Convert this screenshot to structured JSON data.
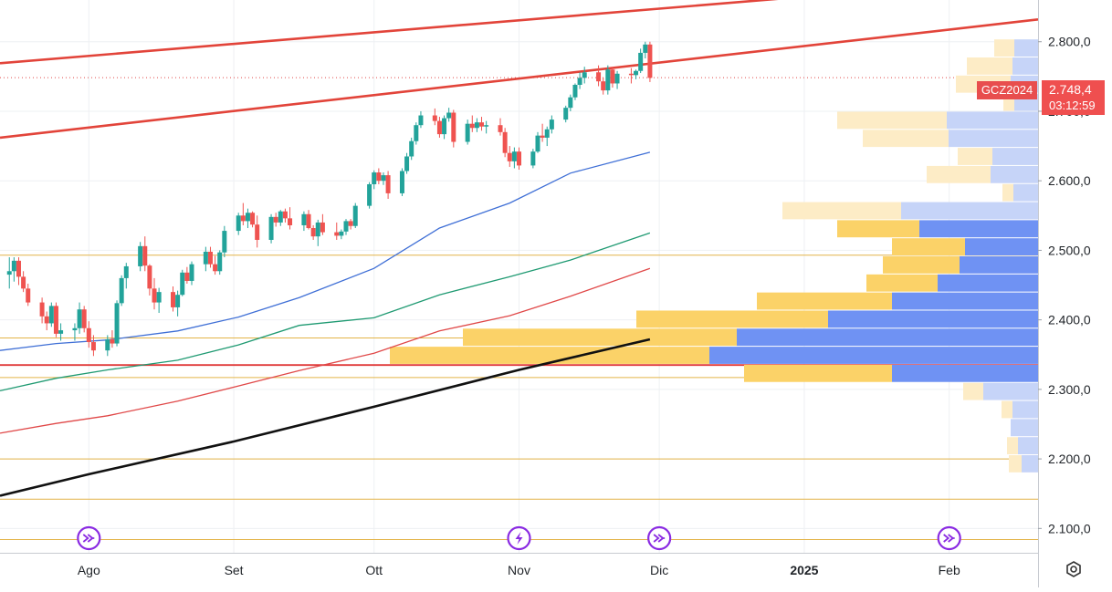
{
  "chart_data": {
    "type": "candlestick",
    "symbol": "GCZ2024",
    "last_price": "2.748,4",
    "countdown": "03:12:59",
    "y_ticks": [
      {
        "value": 2800,
        "label": "2.800,0"
      },
      {
        "value": 2700,
        "label": "2.700,0"
      },
      {
        "value": 2600,
        "label": "2.600,0"
      },
      {
        "value": 2500,
        "label": "2.500,0"
      },
      {
        "value": 2400,
        "label": "2.400,0"
      },
      {
        "value": 2300,
        "label": "2.300,0"
      },
      {
        "value": 2200,
        "label": "2.200,0"
      },
      {
        "value": 2100,
        "label": "2.100,0"
      }
    ],
    "x_ticks": [
      {
        "date": "2024-08-01",
        "label": "Ago",
        "bold": false
      },
      {
        "date": "2024-09-01",
        "label": "Set",
        "bold": false
      },
      {
        "date": "2024-10-01",
        "label": "Ott",
        "bold": false
      },
      {
        "date": "2024-11-01",
        "label": "Nov",
        "bold": false
      },
      {
        "date": "2024-12-01",
        "label": "Dic",
        "bold": false
      },
      {
        "date": "2025-01-01",
        "label": "2025",
        "bold": true
      },
      {
        "date": "2025-02-01",
        "label": "Feb",
        "bold": false
      }
    ],
    "ylim": [
      2065,
      2860
    ],
    "xlim": [
      "2024-07-13",
      "2025-02-20"
    ],
    "grid": true,
    "candles": [
      [
        "2024-07-15",
        2465,
        2490,
        2445,
        2470
      ],
      [
        "2024-07-16",
        2470,
        2490,
        2455,
        2485
      ],
      [
        "2024-07-17",
        2485,
        2490,
        2450,
        2462
      ],
      [
        "2024-07-18",
        2462,
        2470,
        2440,
        2445
      ],
      [
        "2024-07-19",
        2445,
        2452,
        2420,
        2425
      ],
      [
        "2024-07-22",
        2425,
        2432,
        2395,
        2405
      ],
      [
        "2024-07-23",
        2405,
        2412,
        2385,
        2395
      ],
      [
        "2024-07-24",
        2395,
        2425,
        2390,
        2420
      ],
      [
        "2024-07-25",
        2420,
        2425,
        2375,
        2380
      ],
      [
        "2024-07-26",
        2380,
        2395,
        2370,
        2385
      ],
      [
        "2024-07-29",
        2385,
        2395,
        2370,
        2388
      ],
      [
        "2024-07-30",
        2388,
        2425,
        2380,
        2415
      ],
      [
        "2024-07-31",
        2415,
        2420,
        2382,
        2388
      ],
      [
        "2024-08-01",
        2388,
        2398,
        2360,
        2368
      ],
      [
        "2024-08-02",
        2368,
        2378,
        2348,
        2356
      ],
      [
        "2024-08-05",
        2356,
        2378,
        2348,
        2372
      ],
      [
        "2024-08-06",
        2372,
        2385,
        2360,
        2366
      ],
      [
        "2024-08-07",
        2366,
        2428,
        2362,
        2424
      ],
      [
        "2024-08-08",
        2424,
        2464,
        2420,
        2460
      ],
      [
        "2024-08-09",
        2460,
        2482,
        2445,
        2477
      ],
      [
        "2024-08-12",
        2477,
        2512,
        2470,
        2506
      ],
      [
        "2024-08-13",
        2506,
        2520,
        2470,
        2478
      ],
      [
        "2024-08-14",
        2478,
        2480,
        2435,
        2445
      ],
      [
        "2024-08-15",
        2445,
        2460,
        2415,
        2425
      ],
      [
        "2024-08-16",
        2425,
        2446,
        2410,
        2440
      ],
      [
        "2024-08-19",
        2440,
        2448,
        2412,
        2418
      ],
      [
        "2024-08-20",
        2418,
        2442,
        2405,
        2436
      ],
      [
        "2024-08-21",
        2436,
        2472,
        2434,
        2468
      ],
      [
        "2024-08-22",
        2468,
        2476,
        2452,
        2456
      ],
      [
        "2024-08-23",
        2456,
        2484,
        2450,
        2480
      ],
      [
        "2024-08-26",
        2480,
        2505,
        2470,
        2498
      ],
      [
        "2024-08-27",
        2498,
        2505,
        2475,
        2480
      ],
      [
        "2024-08-28",
        2480,
        2492,
        2465,
        2470
      ],
      [
        "2024-08-29",
        2470,
        2500,
        2465,
        2497
      ],
      [
        "2024-08-30",
        2497,
        2535,
        2490,
        2528
      ],
      [
        "2024-09-02",
        2528,
        2554,
        2522,
        2550
      ],
      [
        "2024-09-03",
        2550,
        2568,
        2536,
        2542
      ],
      [
        "2024-09-04",
        2542,
        2560,
        2532,
        2554
      ],
      [
        "2024-09-05",
        2554,
        2556,
        2533,
        2537
      ],
      [
        "2024-09-06",
        2537,
        2550,
        2504,
        2515
      ],
      [
        "2024-09-09",
        2515,
        2552,
        2510,
        2548
      ],
      [
        "2024-09-10",
        2548,
        2554,
        2534,
        2540
      ],
      [
        "2024-09-11",
        2540,
        2558,
        2535,
        2556
      ],
      [
        "2024-09-12",
        2556,
        2560,
        2540,
        2546
      ],
      [
        "2024-09-13",
        2546,
        2562,
        2530,
        2536
      ],
      [
        "2024-09-16",
        2536,
        2556,
        2528,
        2552
      ],
      [
        "2024-09-17",
        2552,
        2558,
        2530,
        2532
      ],
      [
        "2024-09-18",
        2532,
        2536,
        2515,
        2520
      ],
      [
        "2024-09-19",
        2520,
        2544,
        2506,
        2540
      ],
      [
        "2024-09-20",
        2540,
        2552,
        2522,
        2526
      ],
      [
        "2024-09-23",
        2526,
        2540,
        2515,
        2521
      ],
      [
        "2024-09-24",
        2521,
        2530,
        2516,
        2527
      ],
      [
        "2024-09-25",
        2527,
        2545,
        2522,
        2542
      ],
      [
        "2024-09-26",
        2542,
        2545,
        2530,
        2535
      ],
      [
        "2024-09-27",
        2535,
        2568,
        2532,
        2564
      ],
      [
        "2024-09-30",
        2564,
        2598,
        2560,
        2595
      ],
      [
        "2024-10-01",
        2595,
        2615,
        2588,
        2612
      ],
      [
        "2024-10-02",
        2612,
        2618,
        2595,
        2600
      ],
      [
        "2024-10-03",
        2600,
        2612,
        2594,
        2608
      ],
      [
        "2024-10-04",
        2608,
        2614,
        2574,
        2582
      ],
      [
        "2024-10-07",
        2582,
        2618,
        2578,
        2614
      ],
      [
        "2024-10-08",
        2614,
        2640,
        2610,
        2635
      ],
      [
        "2024-10-09",
        2635,
        2662,
        2630,
        2657
      ],
      [
        "2024-10-10",
        2657,
        2684,
        2652,
        2680
      ],
      [
        "2024-10-11",
        2680,
        2700,
        2676,
        2694
      ],
      [
        "2024-10-14",
        2694,
        2704,
        2680,
        2686
      ],
      [
        "2024-10-15",
        2686,
        2692,
        2662,
        2667
      ],
      [
        "2024-10-16",
        2667,
        2694,
        2660,
        2690
      ],
      [
        "2024-10-17",
        2690,
        2705,
        2685,
        2698
      ],
      [
        "2024-10-18",
        2698,
        2702,
        2648,
        2656
      ],
      [
        "2024-10-21",
        2656,
        2688,
        2652,
        2682
      ],
      [
        "2024-10-22",
        2682,
        2694,
        2670,
        2676
      ],
      [
        "2024-10-23",
        2676,
        2690,
        2670,
        2684
      ],
      [
        "2024-10-24",
        2684,
        2692,
        2672,
        2678
      ],
      [
        "2024-10-25",
        2678,
        2686,
        2668,
        2680
      ],
      [
        "2024-10-28",
        2680,
        2690,
        2665,
        2670
      ],
      [
        "2024-10-29",
        2670,
        2676,
        2634,
        2640
      ],
      [
        "2024-10-30",
        2640,
        2650,
        2620,
        2628
      ],
      [
        "2024-10-31",
        2628,
        2648,
        2618,
        2642
      ],
      [
        "2024-11-01",
        2642,
        2648,
        2616,
        2622
      ],
      [
        "2024-11-04",
        2622,
        2646,
        2618,
        2642
      ],
      [
        "2024-11-05",
        2642,
        2670,
        2640,
        2665
      ],
      [
        "2024-11-06",
        2665,
        2682,
        2656,
        2662
      ],
      [
        "2024-11-07",
        2662,
        2678,
        2650,
        2674
      ],
      [
        "2024-11-08",
        2674,
        2694,
        2668,
        2688
      ],
      [
        "2024-11-11",
        2688,
        2708,
        2684,
        2705
      ],
      [
        "2024-11-12",
        2705,
        2724,
        2700,
        2720
      ],
      [
        "2024-11-13",
        2720,
        2740,
        2716,
        2738
      ],
      [
        "2024-11-14",
        2738,
        2756,
        2732,
        2748
      ],
      [
        "2024-11-15",
        2748,
        2764,
        2740,
        2756
      ],
      [
        "2024-11-18",
        2756,
        2766,
        2736,
        2743
      ],
      [
        "2024-11-19",
        2743,
        2748,
        2724,
        2730
      ],
      [
        "2024-11-20",
        2730,
        2766,
        2724,
        2760
      ],
      [
        "2024-11-21",
        2760,
        2764,
        2734,
        2740
      ],
      [
        "2024-11-22",
        2740,
        2758,
        2732,
        2754
      ],
      [
        "2024-11-25",
        2754,
        2762,
        2740,
        2752
      ],
      [
        "2024-11-26",
        2752,
        2760,
        2746,
        2758
      ],
      [
        "2024-11-27",
        2758,
        2790,
        2755,
        2784
      ],
      [
        "2024-11-28",
        2784,
        2800,
        2776,
        2796
      ],
      [
        "2024-11-29",
        2796,
        2800,
        2742,
        2748
      ]
    ],
    "moving_averages": [
      {
        "color": "#3f6fd6",
        "width": 1.3,
        "points": [
          [
            "2024-07-13",
            2356
          ],
          [
            "2024-07-25",
            2366
          ],
          [
            "2024-08-05",
            2371
          ],
          [
            "2024-08-20",
            2384
          ],
          [
            "2024-09-02",
            2404
          ],
          [
            "2024-09-15",
            2432
          ],
          [
            "2024-10-01",
            2474
          ],
          [
            "2024-10-15",
            2532
          ],
          [
            "2024-10-30",
            2568
          ],
          [
            "2024-11-12",
            2611
          ],
          [
            "2024-11-29",
            2641
          ]
        ]
      },
      {
        "color": "#1f9a72",
        "width": 1.3,
        "points": [
          [
            "2024-07-13",
            2298
          ],
          [
            "2024-07-25",
            2316
          ],
          [
            "2024-08-05",
            2328
          ],
          [
            "2024-08-20",
            2342
          ],
          [
            "2024-09-02",
            2364
          ],
          [
            "2024-09-15",
            2392
          ],
          [
            "2024-10-01",
            2403
          ],
          [
            "2024-10-15",
            2436
          ],
          [
            "2024-10-30",
            2462
          ],
          [
            "2024-11-12",
            2486
          ],
          [
            "2024-11-29",
            2525
          ]
        ]
      },
      {
        "color": "#e04848",
        "width": 1.3,
        "points": [
          [
            "2024-07-13",
            2237
          ],
          [
            "2024-07-25",
            2251
          ],
          [
            "2024-08-05",
            2262
          ],
          [
            "2024-08-20",
            2283
          ],
          [
            "2024-09-02",
            2305
          ],
          [
            "2024-09-15",
            2327
          ],
          [
            "2024-10-01",
            2352
          ],
          [
            "2024-10-15",
            2384
          ],
          [
            "2024-10-30",
            2406
          ],
          [
            "2024-11-12",
            2434
          ],
          [
            "2024-11-29",
            2474
          ]
        ]
      },
      {
        "color": "#111111",
        "width": 2.6,
        "points": [
          [
            "2024-07-13",
            2147
          ],
          [
            "2024-08-01",
            2178
          ],
          [
            "2024-09-01",
            2225
          ],
          [
            "2024-10-01",
            2275
          ],
          [
            "2024-11-01",
            2328
          ],
          [
            "2024-11-29",
            2372
          ]
        ]
      }
    ],
    "trend_lines": [
      {
        "color": "#e2443a",
        "width": 2.6,
        "from": [
          "2024-07-13",
          2769
        ],
        "to": [
          "2024-12-27",
          2862
        ]
      },
      {
        "color": "#e2443a",
        "width": 2.6,
        "from": [
          "2024-07-13",
          2662
        ],
        "to": [
          "2025-02-20",
          2832
        ]
      }
    ],
    "horizontal_levels": [
      {
        "price": 2493,
        "color": "#e3b448",
        "width": 1
      },
      {
        "price": 2374,
        "color": "#e3b448",
        "width": 1
      },
      {
        "price": 2335,
        "color": "#e03a3a",
        "width": 1.8
      },
      {
        "price": 2317,
        "color": "#e3b448",
        "width": 1
      },
      {
        "price": 2200,
        "color": "#e3b448",
        "width": 1
      },
      {
        "price": 2142,
        "color": "#e3b448",
        "width": 1
      },
      {
        "price": 2084,
        "color": "#e3b448",
        "width": 1
      }
    ],
    "current_price_level": {
      "price": 2748.4,
      "color": "#e04848"
    },
    "volume_profile": {
      "bin_height": 26,
      "rows": [
        {
          "center": 2791,
          "down": 26,
          "up": 22,
          "in_value_area": false
        },
        {
          "center": 2765,
          "down": 28,
          "up": 50,
          "in_value_area": false
        },
        {
          "center": 2739,
          "down": 30,
          "up": 60,
          "in_value_area": false
        },
        {
          "center": 2713,
          "down": 26,
          "up": 12,
          "in_value_area": false
        },
        {
          "center": 2687,
          "down": 100,
          "up": 120,
          "in_value_area": false
        },
        {
          "center": 2661,
          "down": 98,
          "up": 94,
          "in_value_area": false
        },
        {
          "center": 2635,
          "down": 50,
          "up": 38,
          "in_value_area": false
        },
        {
          "center": 2609,
          "down": 52,
          "up": 70,
          "in_value_area": false
        },
        {
          "center": 2583,
          "down": 27,
          "up": 12,
          "in_value_area": false
        },
        {
          "center": 2557,
          "down": 150,
          "up": 130,
          "in_value_area": false
        },
        {
          "center": 2531,
          "down": 130,
          "up": 90,
          "in_value_area": true
        },
        {
          "center": 2505,
          "down": 80,
          "up": 80,
          "in_value_area": true
        },
        {
          "center": 2479,
          "down": 86,
          "up": 84,
          "in_value_area": true
        },
        {
          "center": 2453,
          "down": 110,
          "up": 78,
          "in_value_area": true
        },
        {
          "center": 2427,
          "down": 160,
          "up": 148,
          "in_value_area": true
        },
        {
          "center": 2401,
          "down": 230,
          "up": 210,
          "in_value_area": true
        },
        {
          "center": 2375,
          "down": 330,
          "up": 300,
          "in_value_area": true
        },
        {
          "center": 2349,
          "down": 360,
          "up": 350,
          "in_value_area": true
        },
        {
          "center": 2323,
          "down": 160,
          "up": 162,
          "in_value_area": true
        },
        {
          "center": 2297,
          "down": 60,
          "up": 22,
          "in_value_area": false
        },
        {
          "center": 2271,
          "down": 28,
          "up": 12,
          "in_value_area": false
        },
        {
          "center": 2245,
          "down": 30,
          "up": 0,
          "in_value_area": false
        },
        {
          "center": 2219,
          "down": 22,
          "up": 12,
          "in_value_area": false
        },
        {
          "center": 2193,
          "down": 18,
          "up": 14,
          "in_value_area": false
        }
      ],
      "colors": {
        "va_down": "#6f92f3",
        "va_up": "#fbd268",
        "out_down": "#c6d4f8",
        "out_up": "#fdecc6"
      }
    },
    "event_markers": [
      {
        "date": "2024-08-01",
        "kind": "dividend-arrow"
      },
      {
        "date": "2024-11-01",
        "kind": "lightning"
      },
      {
        "date": "2024-12-01",
        "kind": "dividend-arrow"
      },
      {
        "date": "2025-02-01",
        "kind": "dividend-arrow"
      }
    ]
  }
}
